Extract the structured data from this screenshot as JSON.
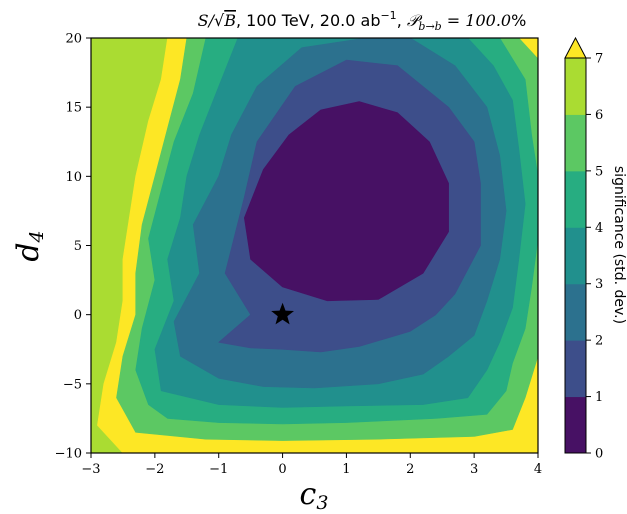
{
  "chart_data": {
    "type": "heatmap",
    "subtype": "filled-contour",
    "title": {
      "ratio_prefix": "S/√",
      "ratio_arg": "B",
      "middle": ", 100 TeV, 20.0 ab",
      "lumi_exp": "−1",
      "comma": ", ",
      "P_symbol": "𝒫",
      "P_sub": "b→b",
      "equals": " = 100.0",
      "percent": "%"
    },
    "xlabel": {
      "base": "c",
      "sub": "3"
    },
    "ylabel": {
      "base": "d",
      "sub": "4"
    },
    "xlim": [
      -3,
      4
    ],
    "ylim": [
      -10,
      20
    ],
    "xticks": [
      -3,
      -2,
      -1,
      0,
      1,
      2,
      3,
      4
    ],
    "yticks": [
      -10,
      -5,
      0,
      5,
      10,
      15,
      20
    ],
    "xtick_labels": [
      "−3",
      "−2",
      "−1",
      "0",
      "1",
      "2",
      "3",
      "4"
    ],
    "ytick_labels": [
      "−10",
      "−5",
      "0",
      "5",
      "10",
      "15",
      "20"
    ],
    "colorbar": {
      "label": "significance (std. dev.)",
      "levels": [
        0,
        1,
        2,
        3,
        4,
        5,
        6,
        7
      ],
      "tick_labels": [
        "0",
        "1",
        "2",
        "3",
        "4",
        "5",
        "6",
        "7"
      ],
      "extend": "max",
      "colors": [
        "#471164",
        "#3d4e8a",
        "#2c718e",
        "#21908d",
        "#27ad81",
        "#5cc863",
        "#aadc32",
        "#fde725"
      ]
    },
    "marker": {
      "shape": "star",
      "x": 0,
      "y": 0,
      "color": "#000000"
    },
    "contours": [
      {
        "level": 1,
        "points": [
          [
            -0.6,
            7
          ],
          [
            -0.3,
            10.5
          ],
          [
            0.1,
            13
          ],
          [
            0.6,
            14.8
          ],
          [
            1.2,
            15.4
          ],
          [
            1.8,
            14.6
          ],
          [
            2.3,
            12.5
          ],
          [
            2.6,
            9.5
          ],
          [
            2.6,
            6
          ],
          [
            2.2,
            3
          ],
          [
            1.5,
            1.1
          ],
          [
            0.7,
            1
          ],
          [
            0,
            2
          ],
          [
            -0.5,
            4
          ]
        ]
      },
      {
        "level": 2,
        "points": [
          [
            -0.5,
            0
          ],
          [
            -0.9,
            3
          ],
          [
            -0.6,
            8.5
          ],
          [
            -0.4,
            12.5
          ],
          [
            0.2,
            16.5
          ],
          [
            1,
            18.4
          ],
          [
            1.8,
            18
          ],
          [
            2.6,
            15
          ],
          [
            3,
            12.5
          ],
          [
            3.1,
            9.5
          ],
          [
            3.1,
            5
          ],
          [
            2.7,
            1.5
          ],
          [
            2.4,
            0
          ],
          [
            2,
            -1.2
          ],
          [
            1.2,
            -2.3
          ],
          [
            0.6,
            -2.7
          ],
          [
            0,
            -2.5
          ],
          [
            -0.5,
            -2.4
          ],
          [
            -1,
            -2
          ]
        ]
      },
      {
        "level": 3,
        "points": [
          [
            -1.6,
            -3
          ],
          [
            -1.7,
            -0.5
          ],
          [
            -1.3,
            3
          ],
          [
            -1.4,
            6.5
          ],
          [
            -1.0,
            10
          ],
          [
            -0.8,
            13
          ],
          [
            -0.4,
            16.5
          ],
          [
            0.3,
            19.3
          ],
          [
            1.3,
            20
          ],
          [
            2.0,
            20
          ],
          [
            2.7,
            18
          ],
          [
            3.2,
            15
          ],
          [
            3.4,
            11.5
          ],
          [
            3.5,
            7.5
          ],
          [
            3.4,
            4
          ],
          [
            3.2,
            1
          ],
          [
            3.0,
            -1.5
          ],
          [
            2.6,
            -3
          ],
          [
            2.2,
            -4.3
          ],
          [
            1.5,
            -5
          ],
          [
            0.5,
            -5.3
          ],
          [
            -0.3,
            -5.2
          ],
          [
            -1,
            -4.6
          ]
        ]
      },
      {
        "level": 4,
        "points": [
          [
            -1.9,
            -5.5
          ],
          [
            -2,
            -2.5
          ],
          [
            -1.7,
            1
          ],
          [
            -1.8,
            4
          ],
          [
            -1.6,
            7
          ],
          [
            -1.5,
            10
          ],
          [
            -1.3,
            13
          ],
          [
            -1.0,
            16.5
          ],
          [
            -0.7,
            20
          ],
          [
            2.9,
            20
          ],
          [
            3.3,
            18
          ],
          [
            3.6,
            15.5
          ],
          [
            3.7,
            12
          ],
          [
            3.8,
            8
          ],
          [
            3.7,
            4
          ],
          [
            3.6,
            0.5
          ],
          [
            3.4,
            -2
          ],
          [
            3.2,
            -4
          ],
          [
            2.9,
            -6
          ],
          [
            2.2,
            -6.5
          ],
          [
            1,
            -6.6
          ],
          [
            0,
            -6.7
          ],
          [
            -1,
            -6.5
          ]
        ]
      },
      {
        "level": 5,
        "points": [
          [
            -2.1,
            -6.5
          ],
          [
            -2.3,
            -4
          ],
          [
            -2.2,
            -1
          ],
          [
            -2.0,
            2.5
          ],
          [
            -2.1,
            5.5
          ],
          [
            -1.9,
            9
          ],
          [
            -1.7,
            12.5
          ],
          [
            -1.4,
            16
          ],
          [
            -1.2,
            20
          ],
          [
            3.4,
            20
          ],
          [
            3.8,
            17
          ],
          [
            3.9,
            13
          ],
          [
            4,
            10
          ],
          [
            4,
            5.5
          ],
          [
            3.9,
            2
          ],
          [
            3.8,
            -1
          ],
          [
            3.6,
            -3.5
          ],
          [
            3.5,
            -5.5
          ],
          [
            3.2,
            -7.2
          ],
          [
            2.4,
            -7.5
          ],
          [
            1,
            -7.8
          ],
          [
            0,
            -7.9
          ],
          [
            -1,
            -7.8
          ],
          [
            -1.8,
            -7.5
          ]
        ]
      },
      {
        "level": 6,
        "points": [
          [
            -2.3,
            -8.5
          ],
          [
            -2.6,
            -6
          ],
          [
            -2.5,
            -3
          ],
          [
            -2.3,
            0
          ],
          [
            -2.3,
            3
          ],
          [
            -2.2,
            6.5
          ],
          [
            -2.0,
            10
          ],
          [
            -1.8,
            13.5
          ],
          [
            -1.6,
            17
          ],
          [
            -1.5,
            20
          ],
          [
            3.7,
            20
          ],
          [
            4,
            18.5
          ],
          [
            4,
            -3
          ],
          [
            3.8,
            -6
          ],
          [
            3.6,
            -8.3
          ],
          [
            3.0,
            -8.8
          ],
          [
            1.5,
            -9.0
          ],
          [
            0,
            -9.1
          ],
          [
            -1.2,
            -9.0
          ]
        ]
      },
      {
        "level": 7,
        "points": [
          [
            -2.5,
            -10
          ],
          [
            -2.9,
            -8
          ],
          [
            -2.8,
            -5
          ],
          [
            -2.6,
            -2
          ],
          [
            -2.5,
            1
          ],
          [
            -2.5,
            4
          ],
          [
            -2.4,
            7
          ],
          [
            -2.3,
            10
          ],
          [
            -2.1,
            14
          ],
          [
            -1.9,
            17
          ],
          [
            -1.8,
            20
          ],
          [
            4,
            20
          ],
          [
            4,
            -10
          ]
        ]
      }
    ]
  }
}
